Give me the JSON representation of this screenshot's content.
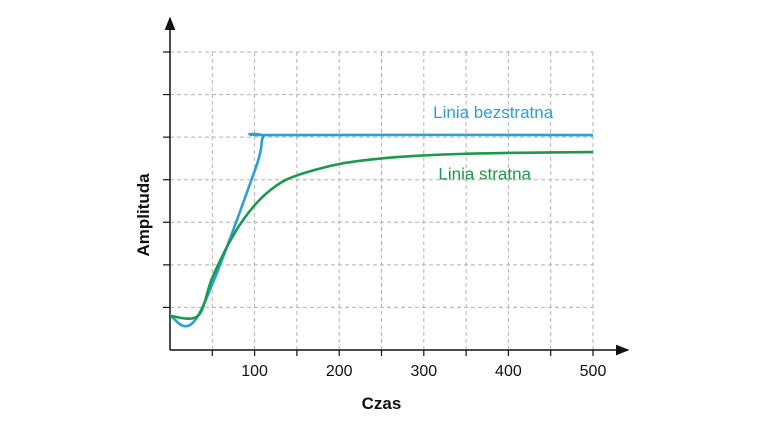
{
  "chart_data": {
    "type": "line",
    "title": "",
    "xlabel": "Czas",
    "ylabel": "Amplituda",
    "xlim": [
      0,
      500
    ],
    "ylim": [
      0,
      7
    ],
    "x_ticks": [
      100,
      200,
      300,
      400,
      500
    ],
    "y_tick_labels_shown": false,
    "grid": true,
    "series": [
      {
        "name": "Linia bezstratna",
        "color": "#2a9fd8",
        "points": [
          [
            0,
            0.8
          ],
          [
            33,
            0.8
          ],
          [
            100,
            4.2
          ],
          [
            110,
            5.0
          ],
          [
            125,
            5.05
          ],
          [
            500,
            5.05
          ]
        ]
      },
      {
        "name": "Linia stratna",
        "color": "#1a9a4a",
        "points": [
          [
            0,
            0.8
          ],
          [
            33,
            0.8
          ],
          [
            50,
            1.7
          ],
          [
            75,
            2.7
          ],
          [
            100,
            3.4
          ],
          [
            125,
            3.85
          ],
          [
            150,
            4.1
          ],
          [
            200,
            4.37
          ],
          [
            250,
            4.5
          ],
          [
            300,
            4.57
          ],
          [
            350,
            4.61
          ],
          [
            400,
            4.63
          ],
          [
            450,
            4.64
          ],
          [
            500,
            4.65
          ]
        ]
      }
    ]
  }
}
